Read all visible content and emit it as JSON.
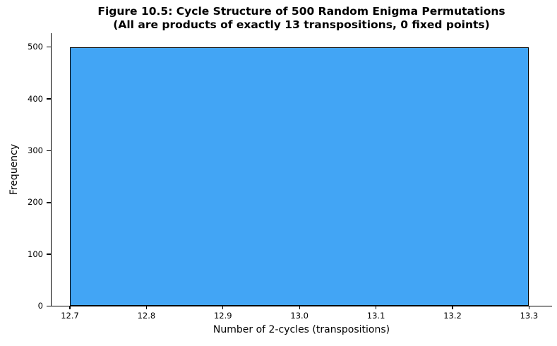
{
  "chart_data": {
    "type": "bar",
    "subtype": "histogram",
    "title": "Figure 10.5: Cycle Structure of 500 Random Enigma Permutations",
    "subtitle": "(All are products of exactly 13 transpositions, 0 fixed points)",
    "xlabel": "Number of 2-cycles (transpositions)",
    "ylabel": "Frequency",
    "bars": [
      {
        "x_start": 12.7,
        "x_end": 13.3,
        "value": 500
      }
    ],
    "x_ticks": [
      {
        "value": 12.7,
        "label": "12.7"
      },
      {
        "value": 12.8,
        "label": "12.8"
      },
      {
        "value": 12.9,
        "label": "12.9"
      },
      {
        "value": 13.0,
        "label": "13.0"
      },
      {
        "value": 13.1,
        "label": "13.1"
      },
      {
        "value": 13.2,
        "label": "13.2"
      },
      {
        "value": 13.3,
        "label": "13.3"
      }
    ],
    "y_ticks": [
      {
        "value": 0,
        "label": "0"
      },
      {
        "value": 100,
        "label": "100"
      },
      {
        "value": 200,
        "label": "200"
      },
      {
        "value": 300,
        "label": "300"
      },
      {
        "value": 400,
        "label": "400"
      },
      {
        "value": 500,
        "label": "500"
      }
    ],
    "xlim": [
      12.676,
      13.331
    ],
    "ylim": [
      0,
      527
    ],
    "grid": false,
    "legend": "none",
    "bar_fill_color": "#42A5F5",
    "bar_edge_color": "#000000",
    "background_color": "#ffffff",
    "text_color": "#000000"
  }
}
